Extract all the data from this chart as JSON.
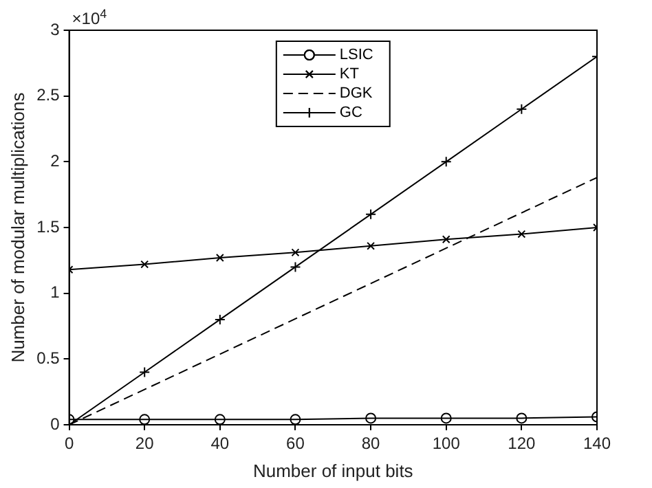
{
  "chart_data": {
    "type": "line",
    "xlabel": "Number of input bits",
    "ylabel": "Number of modular multiplications",
    "x": [
      0,
      20,
      40,
      60,
      80,
      100,
      120,
      140
    ],
    "series": [
      {
        "name": "LSIC",
        "color": "#000000",
        "marker": "circle",
        "line_style": "solid",
        "values": [
          0.04,
          0.04,
          0.04,
          0.04,
          0.05,
          0.05,
          0.05,
          0.06
        ]
      },
      {
        "name": "KT",
        "color": "#000000",
        "marker": "cross",
        "line_style": "solid",
        "values": [
          1.18,
          1.22,
          1.27,
          1.31,
          1.36,
          1.41,
          1.45,
          1.5
        ]
      },
      {
        "name": "DGK",
        "color": "#000000",
        "line_style": "dashed",
        "x": [
          0,
          140
        ],
        "values": [
          0,
          1.88
        ]
      },
      {
        "name": "GC",
        "color": "#000000",
        "marker": "plus",
        "line_style": "solid",
        "values": [
          0,
          0.4,
          0.8,
          1.2,
          1.6,
          2,
          2.4,
          2.8
        ]
      }
    ],
    "xlim": [
      0,
      140
    ],
    "xticks": [
      0,
      20,
      40,
      60,
      80,
      100,
      120,
      140
    ],
    "ylim": [
      0,
      3
    ],
    "yticks": [
      0,
      0.5,
      1,
      1.5,
      2,
      2.5,
      3
    ],
    "annotations": [
      "×10$^{4}$"
    ],
    "legend": "top",
    "grid": false
  }
}
